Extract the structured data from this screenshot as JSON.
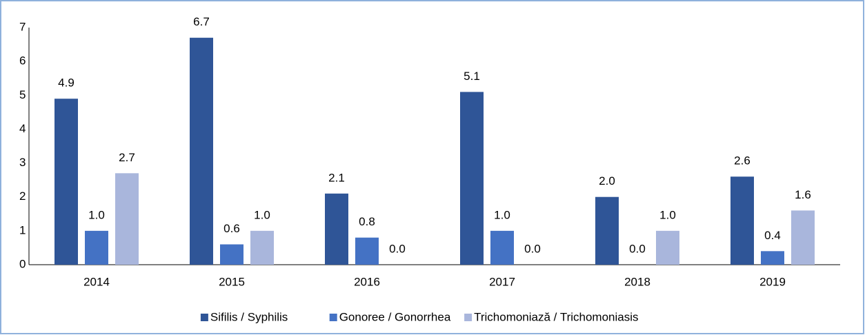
{
  "chart_data": {
    "type": "bar",
    "categories": [
      "2014",
      "2015",
      "2016",
      "2017",
      "2018",
      "2019"
    ],
    "series": [
      {
        "name": "Sifilis / Syphilis",
        "color": "#2f5597",
        "values": [
          4.9,
          6.7,
          2.1,
          5.1,
          2.0,
          2.6
        ],
        "value_labels": [
          "4.9",
          "6.7",
          "2.1",
          "5.1",
          "2.0",
          "2.6"
        ]
      },
      {
        "name": "Gonoree / Gonorrhea",
        "color": "#4472c4",
        "values": [
          1.0,
          0.6,
          0.8,
          1.0,
          0.0,
          0.4
        ],
        "value_labels": [
          "1.0",
          "0.6",
          "0.8",
          "1.0",
          "0.0",
          "0.4"
        ]
      },
      {
        "name": "Trichomoniază / Trichomoniasis",
        "color": "#a9b6dc",
        "values": [
          2.7,
          1.0,
          0.0,
          0.0,
          1.0,
          1.6
        ],
        "value_labels": [
          "2.7",
          "1.0",
          "0.0",
          "0.0",
          "1.0",
          "1.6"
        ]
      }
    ],
    "ylim": [
      0,
      7
    ],
    "yticks": [
      0,
      1,
      2,
      3,
      4,
      5,
      6,
      7
    ],
    "grid": false,
    "legend": "bottom"
  }
}
